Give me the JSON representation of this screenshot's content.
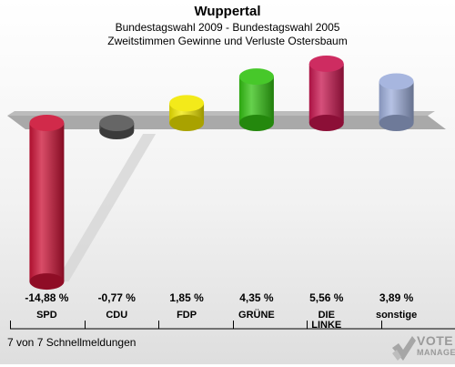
{
  "header": {
    "title": "Wuppertal",
    "subtitle1": "Bundestagswahl 2009 - Bundestagswahl 2005",
    "subtitle2": "Zweitstimmen Gewinne und Verluste Ostersbaum"
  },
  "footer": {
    "note": "7 von 7 Schnellmeldungen",
    "logo_line1": "VOTE",
    "logo_line2": "MANAGER"
  },
  "colors": {
    "SPD": "#cc1236",
    "CDU": "#555555",
    "FDP": "#f2e800",
    "GRÜNE": "#33c212",
    "DIE LINKE": "#c8154f",
    "sonstige": "#9daedb"
  },
  "chart_data": {
    "type": "bar",
    "categories": [
      "SPD",
      "CDU",
      "FDP",
      "GRÜNE",
      "DIE LINKE",
      "sonstige"
    ],
    "category_labels": [
      [
        "SPD"
      ],
      [
        "CDU"
      ],
      [
        "FDP"
      ],
      [
        "GRÜNE"
      ],
      [
        "DIE",
        "LINKE"
      ],
      [
        "sonstige"
      ]
    ],
    "values": [
      -14.88,
      -0.77,
      1.85,
      4.35,
      5.56,
      3.89
    ],
    "value_labels": [
      "-14,88 %",
      "-0,77 %",
      "1,85 %",
      "4,35 %",
      "5,56 %",
      "3,89 %"
    ],
    "ylim": [
      -14.88,
      5.56
    ],
    "grid": false,
    "legend": "none"
  }
}
